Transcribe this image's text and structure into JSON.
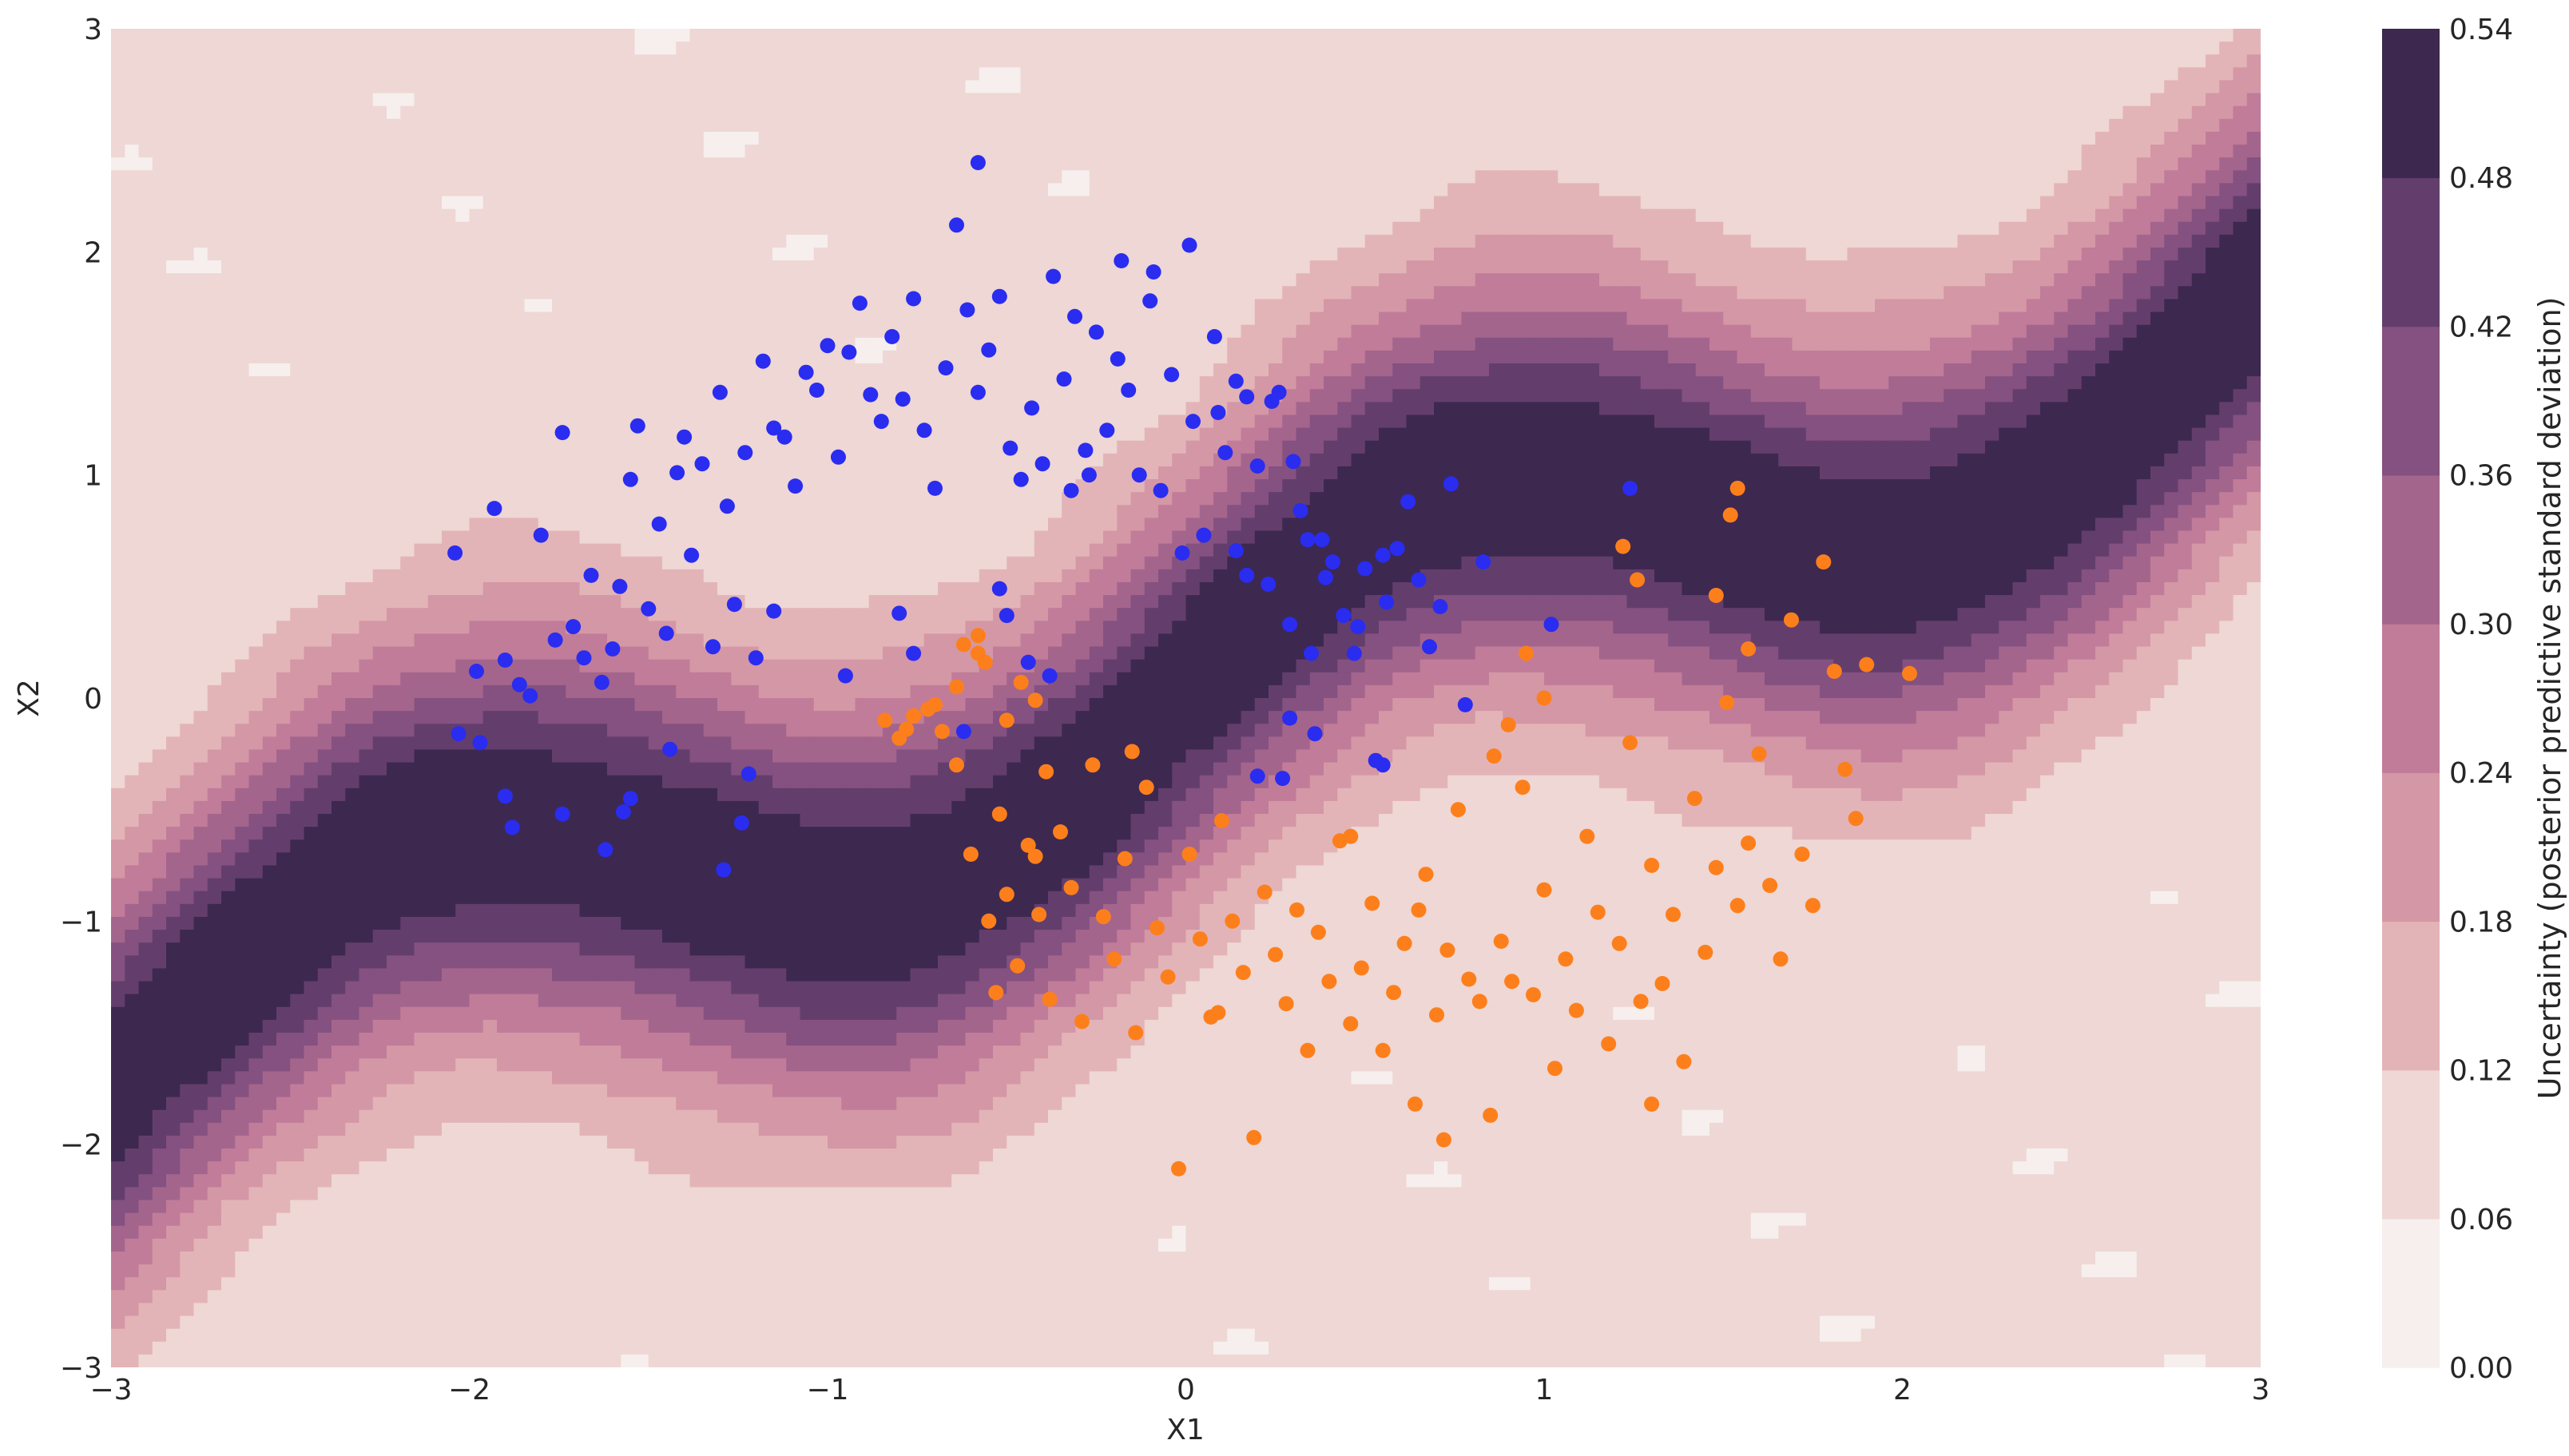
{
  "chart_data": {
    "type": "contour",
    "title": "",
    "xlabel": "X1",
    "ylabel": "X2",
    "xlim": [
      -3,
      3
    ],
    "ylim": [
      -3,
      3
    ],
    "grid": false,
    "xticks": [
      "−3",
      "−2",
      "−1",
      "0",
      "1",
      "2",
      "3"
    ],
    "yticks": [
      "−3",
      "−2",
      "−1",
      "0",
      "1",
      "2",
      "3"
    ],
    "colorbar": {
      "label": "Uncertainty (posterior predictive standard deviation)",
      "levels": [
        0.0,
        0.06,
        0.12,
        0.18,
        0.24,
        0.3,
        0.36,
        0.42,
        0.48,
        0.54
      ],
      "tick_labels": [
        "0.00",
        "0.06",
        "0.12",
        "0.18",
        "0.24",
        "0.30",
        "0.36",
        "0.42",
        "0.48",
        "0.54"
      ],
      "colors": [
        "#f6efed",
        "#eed7d4",
        "#e3b4b7",
        "#d497a6",
        "#c17c99",
        "#a4658d",
        "#845180",
        "#633e6d",
        "#3d2850"
      ]
    },
    "boundary": "y = 0.04 + 0.55*x + 0.5*sin(2.2*x), the uncertainty is highest along this curve and decreases with distance from it",
    "series": [
      {
        "color": "#2a2cf0",
        "points": [
          [
            -2.04,
            0.65
          ],
          [
            -1.98,
            0.12
          ],
          [
            -1.93,
            0.85
          ],
          [
            -1.9,
            0.17
          ],
          [
            -1.86,
            0.06
          ],
          [
            -1.83,
            0.01
          ],
          [
            -1.8,
            0.73
          ],
          [
            -1.76,
            0.26
          ],
          [
            -1.74,
            1.19
          ],
          [
            -1.71,
            0.32
          ],
          [
            -1.68,
            0.18
          ],
          [
            -1.66,
            0.55
          ],
          [
            -1.63,
            0.07
          ],
          [
            -1.6,
            0.22
          ],
          [
            -1.58,
            0.5
          ],
          [
            -1.55,
            0.98
          ],
          [
            -1.53,
            1.22
          ],
          [
            -1.5,
            0.4
          ],
          [
            -1.47,
            0.78
          ],
          [
            -1.45,
            0.29
          ],
          [
            -1.42,
            1.01
          ],
          [
            -1.4,
            1.17
          ],
          [
            -1.38,
            0.64
          ],
          [
            -1.35,
            1.05
          ],
          [
            -1.32,
            0.23
          ],
          [
            -1.3,
            1.37
          ],
          [
            -1.28,
            0.86
          ],
          [
            -1.26,
            0.42
          ],
          [
            -1.23,
            1.1
          ],
          [
            -1.2,
            0.18
          ],
          [
            -1.18,
            1.51
          ],
          [
            -1.15,
            1.21
          ],
          [
            -1.12,
            1.17
          ],
          [
            -1.09,
            0.95
          ],
          [
            -1.06,
            1.46
          ],
          [
            -1.03,
            1.38
          ],
          [
            -1.0,
            1.58
          ],
          [
            -0.97,
            1.08
          ],
          [
            -0.94,
            1.55
          ],
          [
            -0.91,
            1.77
          ],
          [
            -0.88,
            1.36
          ],
          [
            -0.85,
            1.24
          ],
          [
            -0.82,
            1.62
          ],
          [
            -0.79,
            1.34
          ],
          [
            -0.76,
            1.79
          ],
          [
            -0.73,
            1.2
          ],
          [
            -0.7,
            0.94
          ],
          [
            -0.67,
            1.48
          ],
          [
            -0.64,
            2.12
          ],
          [
            -0.61,
            1.74
          ],
          [
            -0.58,
            1.37
          ],
          [
            -0.55,
            1.56
          ],
          [
            -0.52,
            1.8
          ],
          [
            -0.49,
            1.12
          ],
          [
            -0.46,
            0.98
          ],
          [
            -0.43,
            1.3
          ],
          [
            -0.4,
            1.05
          ],
          [
            -0.37,
            1.89
          ],
          [
            -0.34,
            1.43
          ],
          [
            -0.31,
            1.71
          ],
          [
            -0.28,
            1.11
          ],
          [
            -0.25,
            1.64
          ],
          [
            -0.22,
            1.2
          ],
          [
            -0.19,
            1.52
          ],
          [
            -0.16,
            1.38
          ],
          [
            -0.13,
            1.0
          ],
          [
            -0.1,
            1.78
          ],
          [
            -0.07,
            0.93
          ],
          [
            -0.04,
            1.45
          ],
          [
            -0.01,
            0.65
          ],
          [
            0.02,
            1.24
          ],
          [
            0.05,
            0.73
          ],
          [
            0.08,
            1.62
          ],
          [
            0.11,
            1.1
          ],
          [
            0.14,
            0.66
          ],
          [
            0.17,
            1.35
          ],
          [
            0.2,
            1.04
          ],
          [
            0.23,
            0.51
          ],
          [
            0.26,
            1.37
          ],
          [
            0.29,
            0.33
          ],
          [
            0.32,
            0.84
          ],
          [
            0.35,
            0.2
          ],
          [
            0.38,
            0.71
          ],
          [
            0.41,
            0.61
          ],
          [
            0.44,
            0.37
          ],
          [
            0.47,
            0.2
          ],
          [
            0.5,
            0.58
          ],
          [
            0.53,
            -0.28
          ],
          [
            0.56,
            0.43
          ],
          [
            0.59,
            0.67
          ],
          [
            0.62,
            0.88
          ],
          [
            0.65,
            0.53
          ],
          [
            0.68,
            0.23
          ],
          [
            0.71,
            0.41
          ],
          [
            0.74,
            0.96
          ],
          [
            0.78,
            -0.03
          ],
          [
            0.2,
            -0.35
          ],
          [
            0.27,
            -0.36
          ],
          [
            0.36,
            -0.16
          ],
          [
            -0.52,
            0.49
          ],
          [
            -0.76,
            0.2
          ],
          [
            -0.5,
            0.37
          ],
          [
            -0.44,
            0.16
          ],
          [
            -0.62,
            -0.15
          ],
          [
            -0.38,
            0.1
          ],
          [
            -0.8,
            0.38
          ],
          [
            -1.29,
            -0.77
          ],
          [
            -1.24,
            -0.56
          ],
          [
            -1.22,
            -0.34
          ],
          [
            -1.62,
            -0.68
          ],
          [
            -1.74,
            -0.52
          ],
          [
            -1.9,
            -0.44
          ],
          [
            -1.57,
            -0.51
          ],
          [
            -1.55,
            -0.45
          ],
          [
            -1.88,
            -0.58
          ],
          [
            -1.97,
            -0.2
          ],
          [
            -2.03,
            -0.16
          ],
          [
            -1.44,
            -0.23
          ],
          [
            -0.95,
            0.1
          ],
          [
            -1.15,
            0.39
          ],
          [
            -0.27,
            1.0
          ],
          [
            -0.18,
            1.96
          ],
          [
            -0.09,
            1.91
          ],
          [
            0.01,
            2.03
          ],
          [
            -0.58,
            2.4
          ],
          [
            0.09,
            1.28
          ],
          [
            0.14,
            1.42
          ],
          [
            0.24,
            1.33
          ],
          [
            0.48,
            0.32
          ],
          [
            0.29,
            -0.09
          ],
          [
            0.3,
            1.06
          ],
          [
            0.39,
            0.54
          ],
          [
            0.55,
            -0.3
          ],
          [
            1.24,
            0.94
          ],
          [
            1.02,
            0.33
          ],
          [
            0.83,
            0.61
          ],
          [
            0.55,
            0.64
          ],
          [
            0.34,
            0.71
          ],
          [
            0.17,
            0.55
          ],
          [
            -0.32,
            0.93
          ]
        ]
      },
      {
        "color": "#fd7f1c",
        "points": [
          [
            -0.84,
            -0.1
          ],
          [
            -0.8,
            -0.18
          ],
          [
            -0.76,
            -0.08
          ],
          [
            -0.72,
            -0.05
          ],
          [
            -0.68,
            -0.15
          ],
          [
            -0.64,
            -0.3
          ],
          [
            -0.6,
            -0.7
          ],
          [
            -0.58,
            0.28
          ],
          [
            -0.55,
            -1.0
          ],
          [
            -0.52,
            -0.52
          ],
          [
            -0.5,
            -0.88
          ],
          [
            -0.47,
            -1.2
          ],
          [
            -0.44,
            -0.66
          ],
          [
            -0.41,
            -0.97
          ],
          [
            -0.38,
            -1.35
          ],
          [
            -0.35,
            -0.6
          ],
          [
            -0.32,
            -0.85
          ],
          [
            -0.29,
            -1.45
          ],
          [
            -0.26,
            -0.3
          ],
          [
            -0.23,
            -0.98
          ],
          [
            -0.2,
            -1.17
          ],
          [
            -0.17,
            -0.72
          ],
          [
            -0.14,
            -1.5
          ],
          [
            -0.11,
            -0.4
          ],
          [
            -0.08,
            -1.03
          ],
          [
            -0.05,
            -1.25
          ],
          [
            -0.02,
            -2.11
          ],
          [
            0.01,
            -0.7
          ],
          [
            0.04,
            -1.08
          ],
          [
            0.07,
            -1.43
          ],
          [
            0.1,
            -0.55
          ],
          [
            0.13,
            -1.0
          ],
          [
            0.16,
            -1.23
          ],
          [
            0.19,
            -1.97
          ],
          [
            0.22,
            -0.87
          ],
          [
            0.25,
            -1.15
          ],
          [
            0.28,
            -1.37
          ],
          [
            0.31,
            -0.95
          ],
          [
            0.34,
            -1.58
          ],
          [
            0.37,
            -1.05
          ],
          [
            0.4,
            -1.27
          ],
          [
            0.43,
            -0.64
          ],
          [
            0.46,
            -1.46
          ],
          [
            0.49,
            -1.21
          ],
          [
            0.52,
            -0.92
          ],
          [
            0.55,
            -1.58
          ],
          [
            0.58,
            -1.32
          ],
          [
            0.61,
            -1.1
          ],
          [
            0.64,
            -1.82
          ],
          [
            0.67,
            -0.79
          ],
          [
            0.7,
            -1.42
          ],
          [
            0.73,
            -1.13
          ],
          [
            0.76,
            -0.5
          ],
          [
            0.79,
            -1.26
          ],
          [
            0.82,
            -1.36
          ],
          [
            0.85,
            -1.87
          ],
          [
            0.88,
            -1.09
          ],
          [
            0.91,
            -1.27
          ],
          [
            0.94,
            -0.4
          ],
          [
            0.97,
            -1.33
          ],
          [
            1.0,
            -0.86
          ],
          [
            1.03,
            -1.66
          ],
          [
            1.06,
            -1.17
          ],
          [
            1.09,
            -1.4
          ],
          [
            1.12,
            -0.62
          ],
          [
            1.15,
            -0.96
          ],
          [
            1.18,
            -1.55
          ],
          [
            1.21,
            -1.1
          ],
          [
            1.24,
            -0.2
          ],
          [
            1.27,
            -1.36
          ],
          [
            1.3,
            -0.75
          ],
          [
            1.33,
            -1.28
          ],
          [
            1.36,
            -0.97
          ],
          [
            1.39,
            -1.63
          ],
          [
            1.42,
            -0.45
          ],
          [
            1.45,
            -1.14
          ],
          [
            1.48,
            -0.76
          ],
          [
            1.51,
            -0.02
          ],
          [
            1.54,
            -0.93
          ],
          [
            1.57,
            0.22
          ],
          [
            1.6,
            -0.25
          ],
          [
            1.63,
            -0.84
          ],
          [
            1.66,
            -1.17
          ],
          [
            1.69,
            0.35
          ],
          [
            1.72,
            -0.7
          ],
          [
            1.75,
            -0.93
          ],
          [
            1.78,
            0.61
          ],
          [
            1.81,
            0.12
          ],
          [
            1.84,
            -0.32
          ],
          [
            1.87,
            -0.54
          ],
          [
            1.9,
            0.15
          ],
          [
            2.02,
            0.11
          ],
          [
            1.54,
            0.94
          ],
          [
            1.52,
            0.82
          ],
          [
            1.26,
            0.53
          ],
          [
            1.22,
            0.68
          ],
          [
            0.95,
            0.2
          ],
          [
            1.0,
            0.0
          ],
          [
            0.9,
            -0.12
          ],
          [
            0.86,
            -0.26
          ],
          [
            -0.56,
            0.16
          ],
          [
            -0.46,
            0.07
          ],
          [
            -0.42,
            -0.01
          ],
          [
            -0.5,
            -0.1
          ],
          [
            -0.58,
            0.2
          ],
          [
            -0.64,
            0.05
          ],
          [
            -0.78,
            -0.14
          ],
          [
            -0.7,
            -0.03
          ],
          [
            -0.62,
            0.24
          ],
          [
            -0.39,
            -0.33
          ],
          [
            -0.53,
            -1.32
          ],
          [
            -0.42,
            -0.71
          ],
          [
            -0.15,
            -0.24
          ],
          [
            0.09,
            -1.41
          ],
          [
            0.46,
            -0.62
          ],
          [
            0.65,
            -0.95
          ],
          [
            0.72,
            -1.98
          ],
          [
            1.3,
            -1.82
          ],
          [
            1.57,
            -0.65
          ],
          [
            1.48,
            0.46
          ]
        ]
      }
    ]
  }
}
